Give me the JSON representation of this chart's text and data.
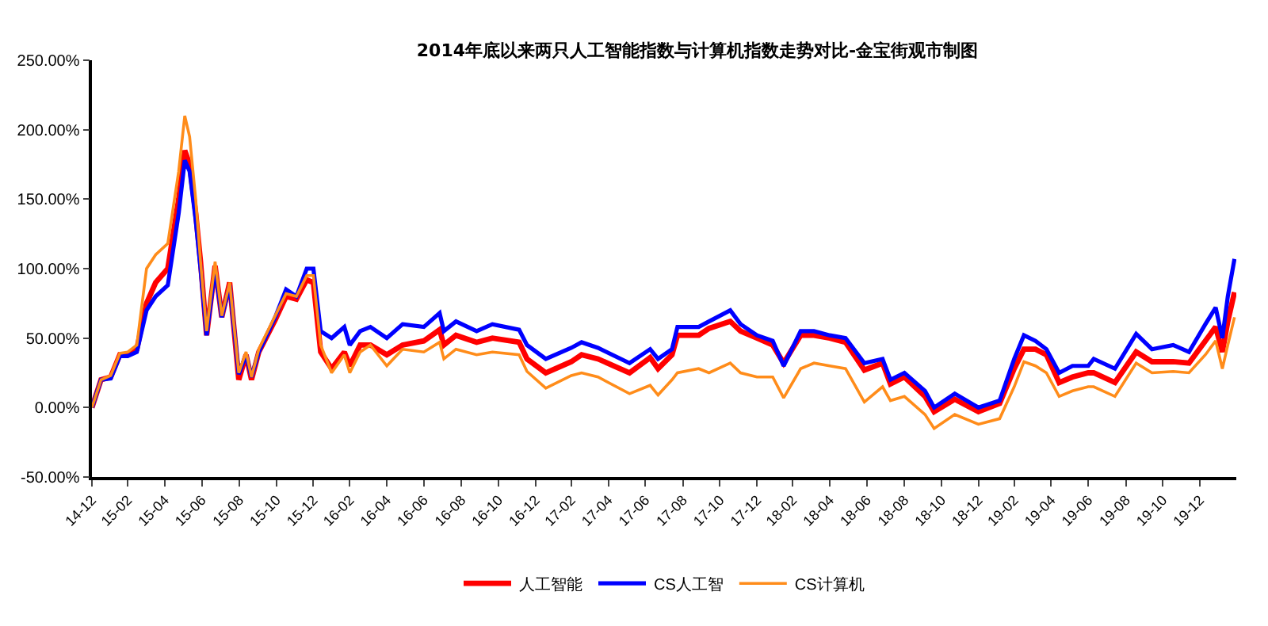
{
  "chart_data": {
    "type": "line",
    "title": "2014年底以来两只人工智能指数与计算机指数走势对比-金宝街观市制图",
    "x": [
      "2014-12-31",
      "2015-01-15",
      "2015-01-31",
      "2015-02-15",
      "2015-02-28",
      "2015-03-15",
      "2015-03-31",
      "2015-04-15",
      "2015-05-05",
      "2015-05-23",
      "2015-06-02",
      "2015-06-10",
      "2015-06-20",
      "2015-06-28",
      "2015-07-08",
      "2015-07-22",
      "2015-08-02",
      "2015-08-15",
      "2015-08-30",
      "2015-09-11",
      "2015-09-20",
      "2015-10-02",
      "2015-10-29",
      "2015-11-16",
      "2015-12-03",
      "2015-12-20",
      "2015-12-31",
      "2016-01-12",
      "2016-01-30",
      "2016-02-20",
      "2016-02-29",
      "2016-03-17",
      "2016-04-03",
      "2016-04-30",
      "2016-05-26",
      "2016-06-30",
      "2016-07-26",
      "2016-08-02",
      "2016-08-22",
      "2016-09-25",
      "2016-10-21",
      "2016-12-04",
      "2016-12-17",
      "2017-01-17",
      "2017-02-28",
      "2017-03-17",
      "2017-04-13",
      "2017-06-04",
      "2017-07-08",
      "2017-07-21",
      "2017-08-13",
      "2017-08-22",
      "2017-09-26",
      "2017-10-13",
      "2017-11-17",
      "2017-12-04",
      "2017-12-31",
      "2018-01-26",
      "2018-02-13",
      "2018-03-13",
      "2018-04-04",
      "2018-04-30",
      "2018-05-26",
      "2018-06-26",
      "2018-07-26",
      "2018-08-08",
      "2018-08-31",
      "2018-10-04",
      "2018-10-19",
      "2018-11-22",
      "2018-12-31",
      "2019-02-04",
      "2019-02-28",
      "2019-03-16",
      "2019-04-04",
      "2019-04-22",
      "2019-05-13",
      "2019-06-04",
      "2019-06-30",
      "2019-07-09",
      "2019-08-13",
      "2019-09-17",
      "2019-10-13",
      "2019-11-17",
      "2019-12-13",
      "2020-01-09",
      "2020-01-26",
      "2020-02-06",
      "2020-02-15",
      "2020-02-26"
    ],
    "series": [
      {
        "name": "人工智能",
        "color": "#ff0000",
        "values": [
          0,
          20,
          22,
          38,
          38,
          42,
          75,
          90,
          100,
          150,
          185,
          175,
          140,
          105,
          52,
          102,
          65,
          90,
          20,
          38,
          20,
          40,
          63,
          80,
          78,
          92,
          90,
          40,
          28,
          40,
          30,
          45,
          45,
          38,
          45,
          48,
          56,
          45,
          52,
          47,
          50,
          47,
          35,
          25,
          33,
          38,
          35,
          25,
          36,
          28,
          38,
          52,
          52,
          57,
          62,
          55,
          50,
          45,
          32,
          52,
          52,
          50,
          47,
          27,
          32,
          17,
          22,
          8,
          -3,
          6,
          -3,
          3,
          28,
          42,
          42,
          38,
          18,
          22,
          25,
          25,
          18,
          40,
          33,
          33,
          32,
          48,
          58,
          40,
          62,
          83
        ]
      },
      {
        "name": "CS人工智",
        "color": "#0000ff",
        "values": [
          0,
          20,
          21,
          37,
          37,
          40,
          70,
          80,
          88,
          140,
          178,
          170,
          135,
          100,
          52,
          100,
          65,
          88,
          24,
          38,
          22,
          40,
          65,
          85,
          80,
          100,
          100,
          55,
          50,
          58,
          45,
          55,
          58,
          50,
          60,
          58,
          68,
          55,
          62,
          55,
          60,
          56,
          45,
          35,
          43,
          47,
          43,
          32,
          42,
          35,
          42,
          58,
          58,
          62,
          70,
          60,
          52,
          48,
          30,
          55,
          55,
          52,
          50,
          32,
          35,
          20,
          25,
          12,
          0,
          10,
          0,
          5,
          35,
          52,
          48,
          42,
          25,
          30,
          30,
          35,
          28,
          53,
          42,
          45,
          40,
          60,
          72,
          50,
          80,
          107
        ]
      },
      {
        "name": "CS计算机",
        "color": "#ff8c1a",
        "values": [
          0,
          20,
          23,
          39,
          40,
          45,
          100,
          110,
          118,
          170,
          210,
          195,
          150,
          105,
          55,
          105,
          66,
          90,
          25,
          40,
          22,
          42,
          66,
          82,
          80,
          95,
          95,
          45,
          25,
          38,
          25,
          40,
          45,
          30,
          42,
          40,
          47,
          35,
          42,
          38,
          40,
          38,
          26,
          14,
          23,
          25,
          22,
          10,
          16,
          9,
          20,
          25,
          28,
          25,
          32,
          25,
          22,
          22,
          7,
          28,
          32,
          30,
          28,
          4,
          15,
          5,
          8,
          -5,
          -15,
          -5,
          -12,
          -8,
          15,
          33,
          30,
          25,
          8,
          12,
          15,
          15,
          8,
          32,
          25,
          26,
          25,
          38,
          48,
          28,
          45,
          65
        ]
      }
    ],
    "xlim": [
      "2014-12-31",
      "2020-02-29"
    ],
    "xticks": [
      {
        "value": "2014-12-31",
        "label": "14-12"
      },
      {
        "value": "2015-02-28",
        "label": "15-02"
      },
      {
        "value": "2015-04-30",
        "label": "15-04"
      },
      {
        "value": "2015-06-30",
        "label": "15-06"
      },
      {
        "value": "2015-08-31",
        "label": "15-08"
      },
      {
        "value": "2015-10-31",
        "label": "15-10"
      },
      {
        "value": "2015-12-31",
        "label": "15-12"
      },
      {
        "value": "2016-02-29",
        "label": "16-02"
      },
      {
        "value": "2016-04-30",
        "label": "16-04"
      },
      {
        "value": "2016-06-30",
        "label": "16-06"
      },
      {
        "value": "2016-08-31",
        "label": "16-08"
      },
      {
        "value": "2016-10-31",
        "label": "16-10"
      },
      {
        "value": "2016-12-31",
        "label": "16-12"
      },
      {
        "value": "2017-02-28",
        "label": "17-02"
      },
      {
        "value": "2017-04-30",
        "label": "17-04"
      },
      {
        "value": "2017-06-30",
        "label": "17-06"
      },
      {
        "value": "2017-08-31",
        "label": "17-08"
      },
      {
        "value": "2017-10-31",
        "label": "17-10"
      },
      {
        "value": "2017-12-31",
        "label": "17-12"
      },
      {
        "value": "2018-02-28",
        "label": "18-02"
      },
      {
        "value": "2018-04-30",
        "label": "18-04"
      },
      {
        "value": "2018-06-30",
        "label": "18-06"
      },
      {
        "value": "2018-08-31",
        "label": "18-08"
      },
      {
        "value": "2018-10-31",
        "label": "18-10"
      },
      {
        "value": "2018-12-31",
        "label": "18-12"
      },
      {
        "value": "2019-02-28",
        "label": "19-02"
      },
      {
        "value": "2019-04-30",
        "label": "19-04"
      },
      {
        "value": "2019-06-30",
        "label": "19-06"
      },
      {
        "value": "2019-08-31",
        "label": "19-08"
      },
      {
        "value": "2019-10-31",
        "label": "19-10"
      },
      {
        "value": "2019-12-31",
        "label": "19-12"
      }
    ],
    "ylim": [
      -50,
      250
    ],
    "yticks": [
      {
        "value": -50,
        "label": "-50.00%"
      },
      {
        "value": 0,
        "label": "0.00%"
      },
      {
        "value": 50,
        "label": "50.00%"
      },
      {
        "value": 100,
        "label": "100.00%"
      },
      {
        "value": 150,
        "label": "150.00%"
      },
      {
        "value": 200,
        "label": "200.00%"
      },
      {
        "value": 250,
        "label": "250.00%"
      }
    ],
    "grid": false,
    "legend": "bottom",
    "marker": "none",
    "line_style": "solid"
  }
}
